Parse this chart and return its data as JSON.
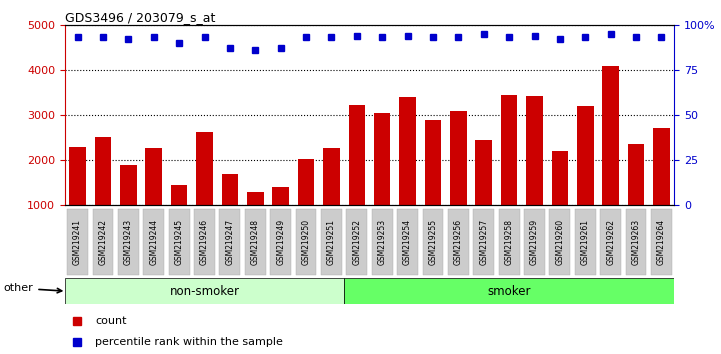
{
  "title": "GDS3496 / 203079_s_at",
  "categories": [
    "GSM219241",
    "GSM219242",
    "GSM219243",
    "GSM219244",
    "GSM219245",
    "GSM219246",
    "GSM219247",
    "GSM219248",
    "GSM219249",
    "GSM219250",
    "GSM219251",
    "GSM219252",
    "GSM219253",
    "GSM219254",
    "GSM219255",
    "GSM219256",
    "GSM219257",
    "GSM219258",
    "GSM219259",
    "GSM219260",
    "GSM219261",
    "GSM219262",
    "GSM219263",
    "GSM219264"
  ],
  "bar_values": [
    2300,
    2520,
    1900,
    2280,
    1450,
    2620,
    1700,
    1300,
    1400,
    2030,
    2260,
    3220,
    3040,
    3400,
    2900,
    3090,
    2440,
    3450,
    3420,
    2200,
    3190,
    4080,
    2360,
    2720
  ],
  "dot_values": [
    93,
    93,
    92,
    93,
    90,
    93,
    87,
    86,
    87,
    93,
    93,
    94,
    93,
    94,
    93,
    93,
    95,
    93,
    94,
    92,
    93,
    95,
    93,
    93
  ],
  "bar_color": "#cc0000",
  "dot_color": "#0000cc",
  "ylim_left": [
    1000,
    5000
  ],
  "ylim_right": [
    0,
    100
  ],
  "yticks_left": [
    1000,
    2000,
    3000,
    4000,
    5000
  ],
  "yticks_right": [
    0,
    25,
    50,
    75,
    100
  ],
  "yticklabels_right": [
    "0",
    "25",
    "50",
    "75",
    "100%"
  ],
  "group1_label": "non-smoker",
  "group2_label": "smoker",
  "group1_count": 11,
  "other_label": "other",
  "group1_color": "#ccffcc",
  "group2_color": "#66ff66",
  "bar_box_color": "#cccccc",
  "legend_count_label": "count",
  "legend_pct_label": "percentile rank within the sample"
}
